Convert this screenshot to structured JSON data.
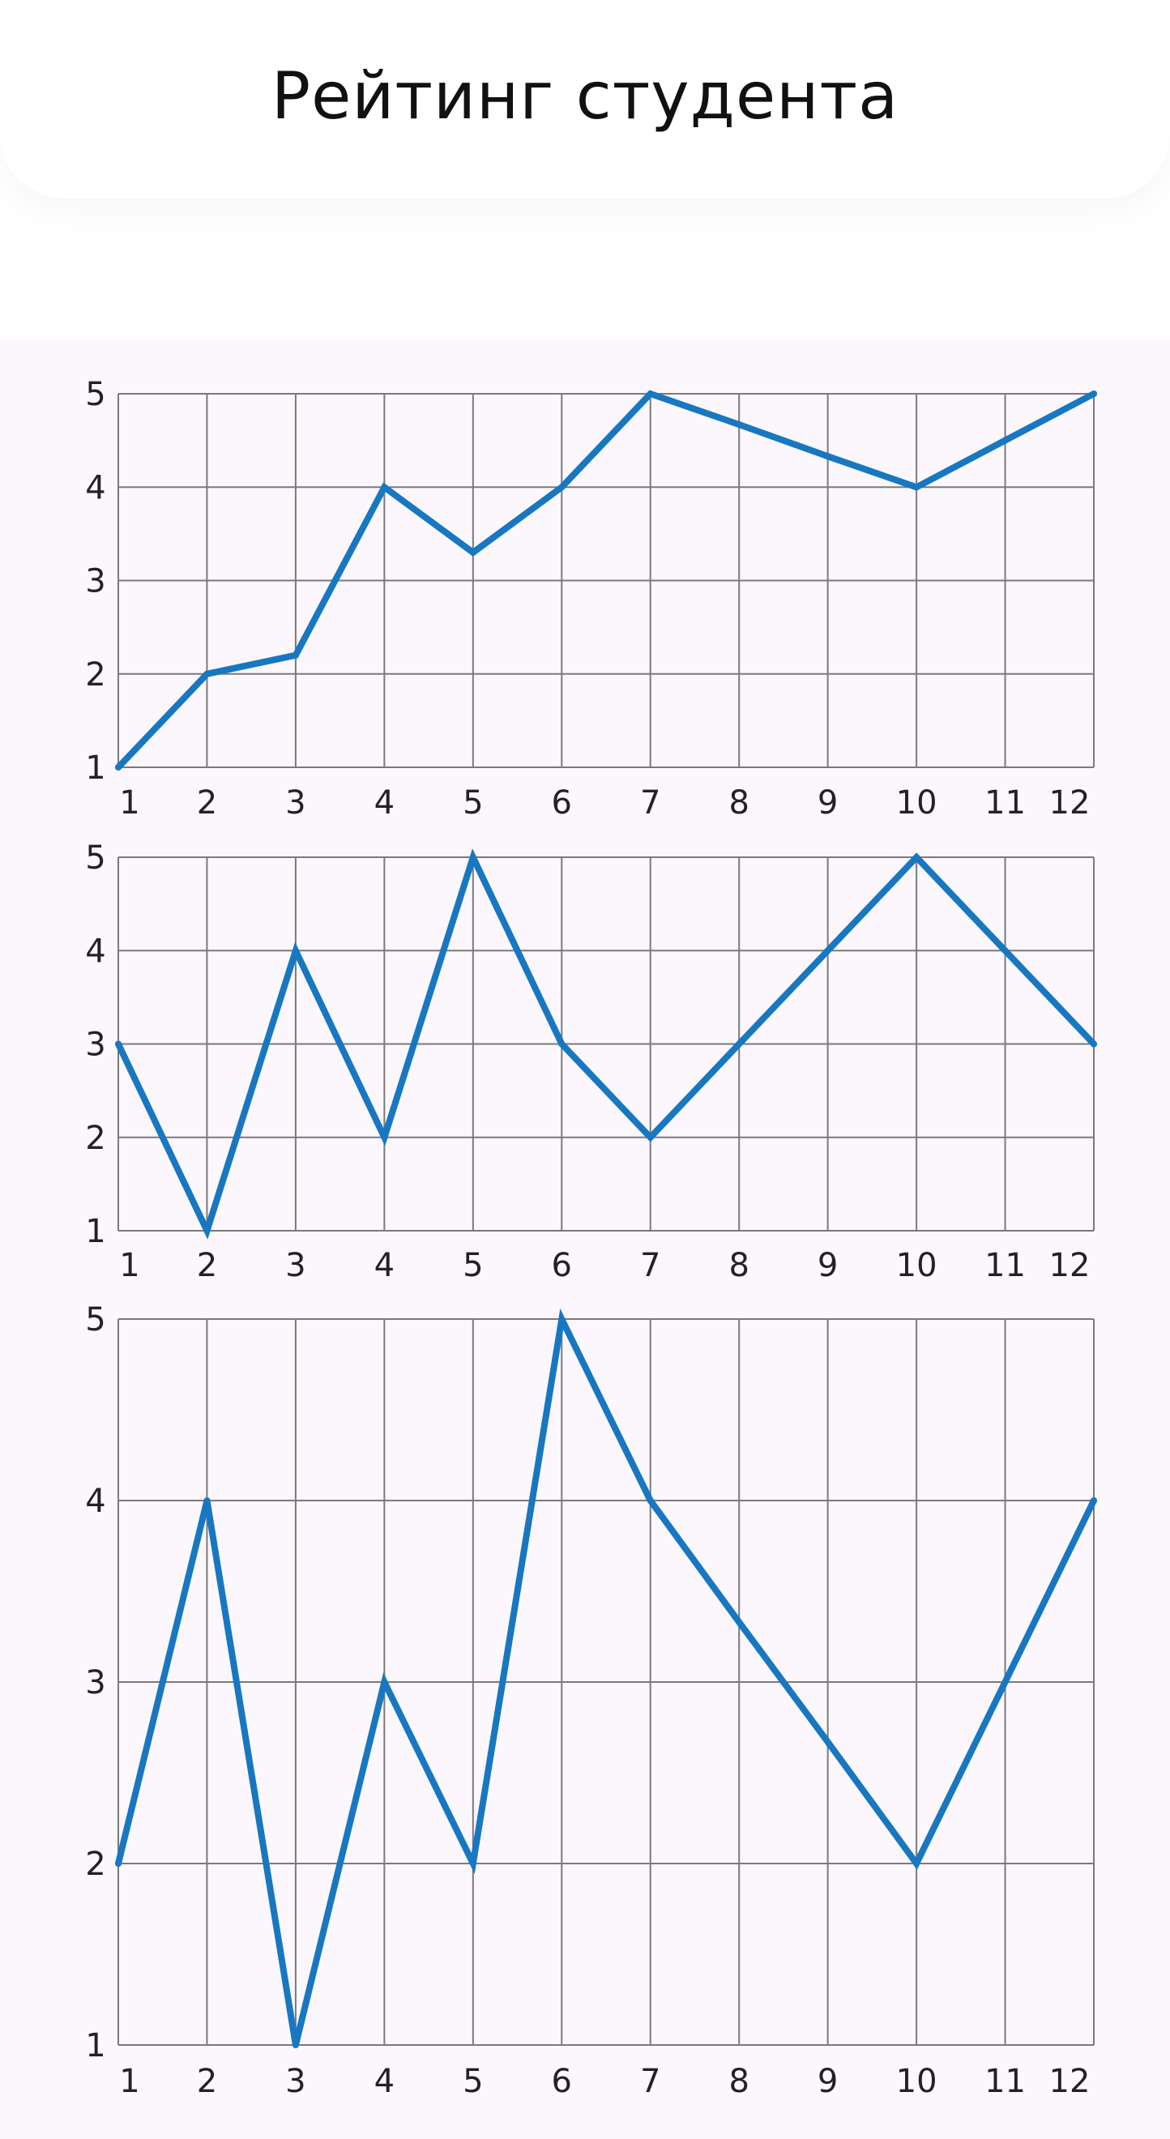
{
  "header": {
    "title": "Рейтинг студента"
  },
  "colors": {
    "line": "#1877c1",
    "grid": "#7a7a7a",
    "background": "#fbf7fc"
  },
  "chart_data": [
    {
      "type": "line",
      "x": [
        1,
        2,
        3,
        4,
        5,
        6,
        7,
        8,
        9,
        10,
        11,
        12
      ],
      "x_tick_labels": [
        "1",
        "2",
        "3",
        "4",
        "5",
        "6",
        "7",
        "8",
        "9",
        "10",
        "11",
        "12"
      ],
      "y_tick_labels": [
        "1",
        "2",
        "3",
        "4",
        "5"
      ],
      "ylim": [
        1,
        5
      ],
      "grid": true,
      "series": [
        {
          "values": [
            1,
            2,
            2.2,
            4,
            3.3,
            4,
            5,
            4.67,
            4.33,
            4,
            4.5,
            5
          ]
        }
      ]
    },
    {
      "type": "line",
      "x": [
        1,
        2,
        3,
        4,
        5,
        6,
        7,
        8,
        9,
        10,
        11,
        12
      ],
      "x_tick_labels": [
        "1",
        "2",
        "3",
        "4",
        "5",
        "6",
        "7",
        "8",
        "9",
        "10",
        "11",
        "12"
      ],
      "y_tick_labels": [
        "1",
        "2",
        "3",
        "4",
        "5"
      ],
      "ylim": [
        1,
        5
      ],
      "grid": true,
      "series": [
        {
          "values": [
            3,
            1,
            4,
            2,
            5,
            3,
            2,
            3,
            4,
            5,
            4,
            3
          ]
        }
      ]
    },
    {
      "type": "line",
      "x": [
        1,
        2,
        3,
        4,
        5,
        6,
        7,
        8,
        9,
        10,
        11,
        12
      ],
      "x_tick_labels": [
        "1",
        "2",
        "3",
        "4",
        "5",
        "6",
        "7",
        "8",
        "9",
        "10",
        "11",
        "12"
      ],
      "y_tick_labels": [
        "1",
        "2",
        "3",
        "4",
        "5"
      ],
      "ylim": [
        1,
        5
      ],
      "grid": true,
      "series": [
        {
          "values": [
            2,
            4,
            1,
            3,
            2,
            5,
            4,
            3.33,
            2.67,
            2,
            3,
            4
          ]
        }
      ]
    }
  ]
}
